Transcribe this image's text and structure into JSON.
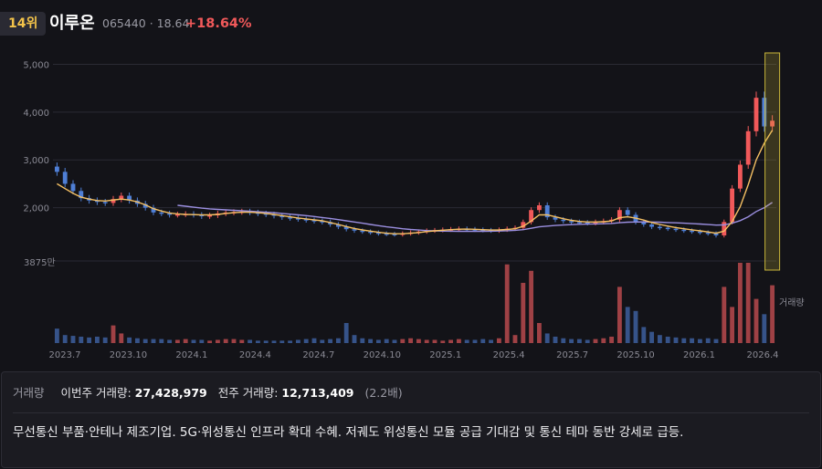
{
  "header": {
    "rank": "14위",
    "name": "이루온",
    "code_price": "065440 · 18.64",
    "change": "+18.64%"
  },
  "chart_data": {
    "type": "candlestick",
    "y_ticks": [
      "5,000",
      "4,000",
      "3,000",
      "2,000"
    ],
    "ylim": [
      1000,
      5200
    ],
    "x_ticks": [
      "2023.7",
      "2023.10",
      "2024.1",
      "2024.4",
      "2024.7",
      "2024.10",
      "2025.1",
      "2025.4",
      "2025.7",
      "2025.10",
      "2026.1",
      "2026.4"
    ],
    "volume_max_label": "3875만",
    "volume_label": "거래량",
    "close_series": [
      2750,
      2500,
      2350,
      2200,
      2150,
      2120,
      2100,
      2180,
      2250,
      2150,
      2080,
      2000,
      1900,
      1880,
      1850,
      1860,
      1870,
      1850,
      1820,
      1840,
      1880,
      1900,
      1910,
      1920,
      1900,
      1880,
      1860,
      1830,
      1800,
      1780,
      1760,
      1740,
      1720,
      1700,
      1650,
      1600,
      1550,
      1520,
      1500,
      1480,
      1460,
      1450,
      1440,
      1460,
      1480,
      1500,
      1520,
      1530,
      1540,
      1550,
      1560,
      1550,
      1540,
      1530,
      1520,
      1540,
      1560,
      1580,
      1700,
      1950,
      2050,
      1800,
      1750,
      1720,
      1700,
      1690,
      1680,
      1700,
      1720,
      1750,
      1950,
      1850,
      1700,
      1650,
      1600,
      1580,
      1560,
      1540,
      1520,
      1500,
      1480,
      1460,
      1420,
      1700,
      2400,
      2900,
      3600,
      4300,
      3700,
      3820
    ],
    "ma_fast": [
      2500,
      2400,
      2300,
      2220,
      2180,
      2150,
      2140,
      2160,
      2180,
      2160,
      2120,
      2060,
      1980,
      1930,
      1890,
      1870,
      1860,
      1855,
      1850,
      1850,
      1860,
      1880,
      1895,
      1905,
      1905,
      1895,
      1880,
      1860,
      1835,
      1810,
      1785,
      1765,
      1745,
      1725,
      1690,
      1650,
      1605,
      1565,
      1535,
      1510,
      1485,
      1465,
      1455,
      1455,
      1465,
      1480,
      1500,
      1515,
      1528,
      1540,
      1550,
      1552,
      1548,
      1540,
      1532,
      1535,
      1545,
      1560,
      1610,
      1720,
      1850,
      1850,
      1810,
      1770,
      1735,
      1712,
      1700,
      1700,
      1707,
      1722,
      1790,
      1810,
      1780,
      1740,
      1690,
      1650,
      1615,
      1585,
      1560,
      1537,
      1515,
      1492,
      1465,
      1510,
      1710,
      2020,
      2480,
      3000,
      3350,
      3620
    ],
    "ma_slow": [
      null,
      null,
      null,
      null,
      null,
      null,
      null,
      null,
      null,
      null,
      null,
      null,
      null,
      null,
      null,
      2050,
      2030,
      2010,
      1990,
      1975,
      1965,
      1955,
      1945,
      1935,
      1925,
      1915,
      1905,
      1895,
      1880,
      1865,
      1850,
      1835,
      1815,
      1795,
      1775,
      1750,
      1725,
      1700,
      1675,
      1650,
      1625,
      1600,
      1580,
      1560,
      1545,
      1532,
      1522,
      1515,
      1510,
      1508,
      1506,
      1505,
      1505,
      1506,
      1508,
      1512,
      1518,
      1526,
      1540,
      1568,
      1600,
      1615,
      1628,
      1638,
      1646,
      1652,
      1657,
      1660,
      1664,
      1670,
      1685,
      1696,
      1700,
      1702,
      1700,
      1696,
      1690,
      1683,
      1675,
      1667,
      1658,
      1648,
      1636,
      1640,
      1675,
      1730,
      1810,
      1920,
      2000,
      2110
    ],
    "volume": [
      0.18,
      0.1,
      0.09,
      0.08,
      0.07,
      0.08,
      0.07,
      0.22,
      0.12,
      0.07,
      0.06,
      0.05,
      0.05,
      0.05,
      0.04,
      0.04,
      0.05,
      0.04,
      0.04,
      0.03,
      0.04,
      0.05,
      0.05,
      0.04,
      0.04,
      0.03,
      0.03,
      0.03,
      0.03,
      0.03,
      0.04,
      0.05,
      0.06,
      0.04,
      0.05,
      0.06,
      0.25,
      0.1,
      0.06,
      0.05,
      0.04,
      0.05,
      0.04,
      0.05,
      0.06,
      0.05,
      0.04,
      0.04,
      0.03,
      0.04,
      0.05,
      0.04,
      0.04,
      0.05,
      0.04,
      0.06,
      0.98,
      0.1,
      0.75,
      0.9,
      0.25,
      0.12,
      0.08,
      0.06,
      0.05,
      0.05,
      0.04,
      0.05,
      0.06,
      0.08,
      0.7,
      0.45,
      0.4,
      0.2,
      0.14,
      0.1,
      0.08,
      0.07,
      0.06,
      0.06,
      0.05,
      0.06,
      0.05,
      0.7,
      0.45,
      1.0,
      1.0,
      0.55,
      0.36,
      0.72
    ],
    "highlight_range": "last-week"
  },
  "panel": {
    "volume_key": "거래량",
    "this_week_label": "이번주 거래량:",
    "this_week_value": "27,428,979",
    "last_week_label": "전주 거래량:",
    "last_week_value": "12,713,409",
    "ratio": "(2.2배)",
    "description": "무선통신 부품·안테나 제조기업. 5G·위성통신 인프라 확대 수혜. 저궤도 위성통신 모듈 공급 기대감 및 통신 테마 동반 강세로 급등."
  },
  "colors": {
    "up": "#f1595a",
    "down": "#4f7fd6",
    "ma_fast": "#f5c063",
    "ma_slow": "#9b8fe0",
    "highlight": "#c9b63a"
  }
}
